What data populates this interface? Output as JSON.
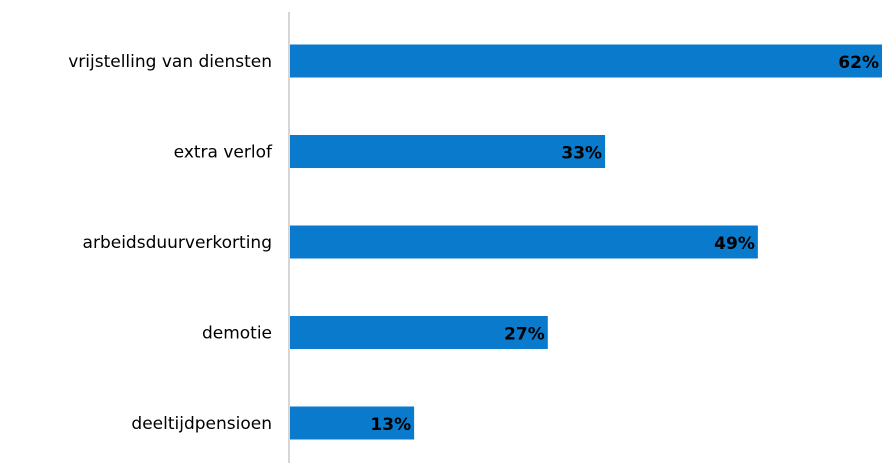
{
  "chart_data": {
    "type": "bar",
    "orientation": "horizontal",
    "categories": [
      "vrijstelling van diensten",
      "extra verlof",
      "arbeidsduurverkorting",
      "demotie",
      "deeltijdpensioen"
    ],
    "values": [
      62,
      33,
      49,
      27,
      13
    ],
    "value_labels": [
      "62%",
      "33%",
      "49%",
      "27%",
      "13%"
    ],
    "unit": "%",
    "xlim": [
      0,
      62
    ],
    "grid": false,
    "legend": "none",
    "colors": {
      "bar": "#0a7acc",
      "axis": "#c8c8c8",
      "text": "#000000"
    }
  }
}
